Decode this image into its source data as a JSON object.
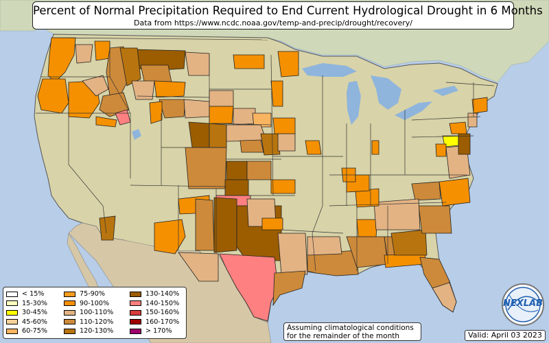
{
  "title": "Percent of Normal Precipitation Required to End Current Hydrological Drought in 6 Months",
  "subtitle": "Data from https://www.ncdc.noaa.gov/temp-and-precip/drought/recovery/",
  "note_line1": "Assuming climatological conditions",
  "note_line2": "for the remainder of the month",
  "valid": "Valid: April 03 2023",
  "logo_text": "NEXLAB",
  "colors": {
    "ocean": "#b7cde8",
    "land_west": "#d8cfb0",
    "land_east": "#d9dca8",
    "canada": "#cfd8b8",
    "mexico": "#d6c8a6",
    "lakes": "#8fb5dd",
    "state_border": "#333333"
  },
  "legend": {
    "col1": [
      {
        "label": "< 15%",
        "color": "#ffffff"
      },
      {
        "label": "15-30%",
        "color": "#ffffc0"
      },
      {
        "label": "30-45%",
        "color": "#ffff00"
      },
      {
        "label": "45-60%",
        "color": "#f7d39b"
      },
      {
        "label": "60-75%",
        "color": "#f8b460"
      }
    ],
    "col2": [
      {
        "label": "75-90%",
        "color": "#fb9c1f"
      },
      {
        "label": "90-100%",
        "color": "#f59000"
      },
      {
        "label": "100-110%",
        "color": "#e3b384"
      },
      {
        "label": "110-120%",
        "color": "#cd8a3a"
      },
      {
        "label": "120-130%",
        "color": "#b8740e"
      }
    ],
    "col3": [
      {
        "label": "130-140%",
        "color": "#9b5d00"
      },
      {
        "label": "140-150%",
        "color": "#ff8080"
      },
      {
        "label": "150-160%",
        "color": "#d83c3c"
      },
      {
        "label": "160-170%",
        "color": "#a00000"
      },
      {
        "label": "> 170%",
        "color": "#a0006b"
      }
    ]
  }
}
